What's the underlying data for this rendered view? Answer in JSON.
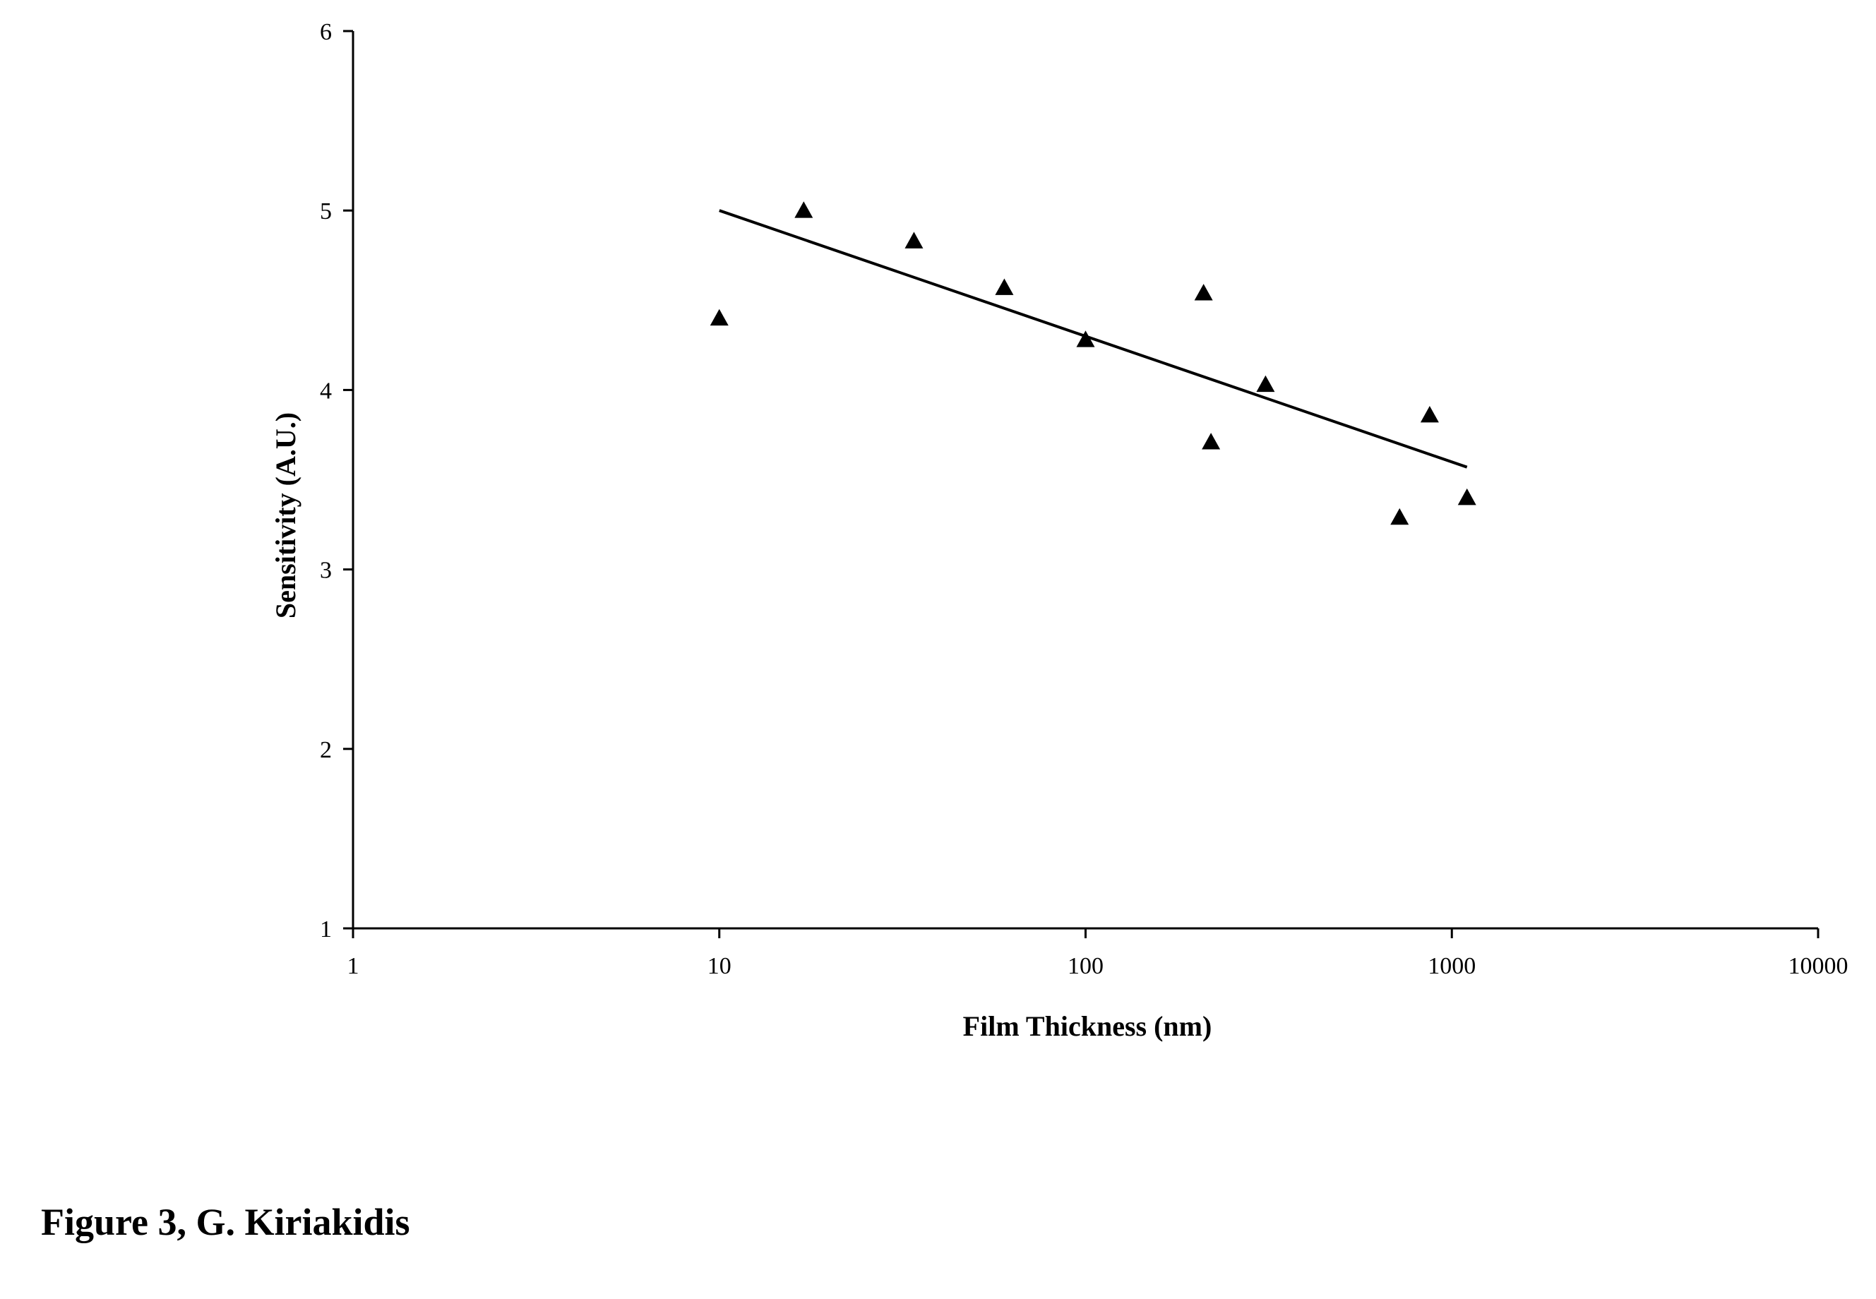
{
  "chart_data": {
    "type": "scatter",
    "title": "",
    "xlabel": "Film Thickness (nm)",
    "ylabel": "Sensitivity (A.U.)",
    "x_scale": "log",
    "xlim": [
      1,
      10000
    ],
    "ylim": [
      1,
      6
    ],
    "x_ticks": [
      1,
      10,
      100,
      1000,
      10000
    ],
    "x_tick_labels": [
      "1",
      "10",
      "100",
      "1000",
      "10000"
    ],
    "y_ticks": [
      1,
      2,
      3,
      4,
      5,
      6
    ],
    "y_tick_labels": [
      "1",
      "2",
      "3",
      "4",
      "5",
      "6"
    ],
    "grid": false,
    "legend": "none",
    "marker": "triangle",
    "colors": {
      "marker": "#000000",
      "line": "#000000",
      "axis": "#000000"
    },
    "series": [
      {
        "kind": "points",
        "x": [
          10,
          17,
          34,
          60,
          100,
          210,
          220,
          310,
          720,
          870,
          1100
        ],
        "y": [
          4.4,
          5.0,
          4.83,
          4.57,
          4.28,
          4.54,
          3.71,
          4.03,
          3.29,
          3.86,
          3.4
        ]
      },
      {
        "kind": "trendline",
        "x": [
          10,
          1100
        ],
        "y": [
          5.0,
          3.57
        ]
      }
    ]
  },
  "caption": "Figure 3, G. Kiriakidis"
}
